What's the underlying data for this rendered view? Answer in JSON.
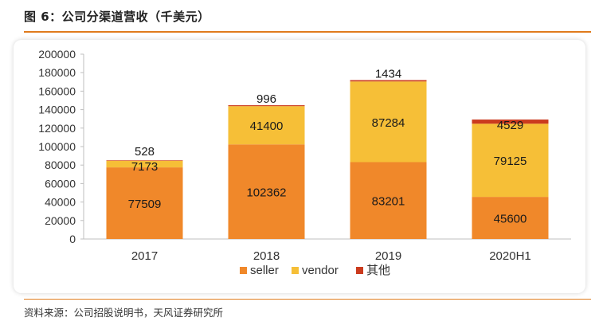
{
  "title": "图 6：公司分渠道营收（千美元）",
  "source": "资料来源：公司招股说明书，天风证券研究所",
  "colors": {
    "seller": "#f0882a",
    "vendor": "#f6bf37",
    "other": "#cb3b1e",
    "accent": "#e07b1c"
  },
  "chart_data": {
    "type": "bar",
    "stacked": true,
    "title": "",
    "xlabel": "",
    "ylabel": "",
    "ylim": [
      0,
      200000
    ],
    "yticks": [
      0,
      20000,
      40000,
      60000,
      80000,
      100000,
      120000,
      140000,
      160000,
      180000,
      200000
    ],
    "grid": false,
    "legend": "bottom",
    "categories": [
      "2017",
      "2018",
      "2019",
      "2020H1"
    ],
    "series": [
      {
        "name": "seller",
        "values": [
          77509,
          102362,
          83201,
          45600
        ]
      },
      {
        "name": "vendor",
        "values": [
          7173,
          41400,
          87284,
          79125
        ]
      },
      {
        "name": "其他",
        "values": [
          528,
          996,
          1434,
          4529
        ]
      }
    ]
  }
}
